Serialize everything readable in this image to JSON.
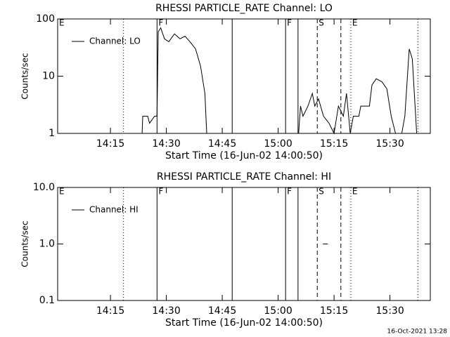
{
  "chart_data": [
    {
      "type": "line",
      "title": "RHESSI PARTICLE_RATE Channel: LO",
      "xlabel": "Start Time (16-Jun-02 14:00:50)",
      "ylabel": "Counts/sec",
      "log_y": true,
      "ylim": [
        1,
        100
      ],
      "yticks": [
        1,
        10,
        100
      ],
      "xlim": [
        "14:00:50",
        "15:40:50"
      ],
      "xticks": [
        "14:15",
        "14:30",
        "14:45",
        "15:00",
        "15:15",
        "15:30"
      ],
      "legend": "upper left",
      "series": [
        {
          "name": "Channel: LO",
          "color": "#000000",
          "x": [
            "14:23:30",
            "14:23:40",
            "14:25:00",
            "14:25:30",
            "14:26:50",
            "14:27:30",
            "14:27:50",
            "14:28:30",
            "14:29:30",
            "14:30:40",
            "14:32:10",
            "14:33:40",
            "14:35:00",
            "14:36:20",
            "14:37:50",
            "14:39:10",
            "14:40:20",
            "14:40:50",
            null,
            "15:05:30",
            "15:06:00",
            "15:06:40",
            "15:08:00",
            "15:09:10",
            "15:09:50",
            "15:10:50",
            "15:12:10",
            "15:13:40",
            "15:15:00",
            "15:16:10",
            "15:17:30",
            "15:18:20",
            "15:19:20",
            "15:20:10",
            "15:21:40",
            "15:22:10",
            "15:24:30",
            "15:25:10",
            "15:26:20",
            "15:27:50",
            "15:29:10",
            "15:30:20",
            "15:31:30",
            "15:33:10",
            "15:34:00",
            "15:35:10",
            "15:36:00",
            "15:37:10"
          ],
          "values": [
            1,
            2,
            2,
            1.5,
            2,
            2,
            60,
            70,
            45,
            40,
            55,
            45,
            50,
            40,
            30,
            15,
            5,
            1,
            null,
            1,
            3,
            2,
            3,
            5,
            3,
            4,
            2,
            1.5,
            1,
            3,
            2,
            5,
            1,
            2,
            2,
            3,
            3,
            7,
            9,
            8,
            6,
            2,
            1,
            1,
            2,
            30,
            20,
            1
          ]
        }
      ],
      "markers": [
        {
          "x": "14:18:30",
          "style": "dotted"
        },
        {
          "x": "14:27:30",
          "style": "solid"
        },
        {
          "x": "14:47:40",
          "style": "solid"
        },
        {
          "x": "15:02:00",
          "style": "solid"
        },
        {
          "x": "15:05:20",
          "style": "solid"
        },
        {
          "x": "15:10:30",
          "style": "dashed"
        },
        {
          "x": "15:16:50",
          "style": "dashed"
        },
        {
          "x": "15:19:30",
          "style": "dotted"
        },
        {
          "x": "15:37:30",
          "style": "dotted"
        }
      ],
      "annotations": [
        {
          "text": "E",
          "x": "14:00:50"
        },
        {
          "text": "F",
          "x": "14:27:30"
        },
        {
          "text": "F",
          "x": "15:02:00"
        },
        {
          "text": "S",
          "x": "15:10:30"
        },
        {
          "text": "E",
          "x": "15:19:30"
        }
      ]
    },
    {
      "type": "line",
      "title": "RHESSI PARTICLE_RATE Channel: HI",
      "xlabel": "Start Time (16-Jun-02 14:00:50)",
      "ylabel": "Counts/sec",
      "log_y": true,
      "ylim": [
        0.1,
        10
      ],
      "yticks": [
        {
          "value": 0.1,
          "label": "0.1"
        },
        {
          "value": 1,
          "label": "1.0"
        },
        {
          "value": 10,
          "label": "10.0"
        }
      ],
      "xlim": [
        "14:00:50",
        "15:40:50"
      ],
      "xticks": [
        "14:15",
        "14:30",
        "14:45",
        "15:00",
        "15:15",
        "15:30"
      ],
      "legend": "upper left",
      "series": [
        {
          "name": "Channel: HI",
          "color": "#000000",
          "x": [
            "15:12:00",
            "15:13:20"
          ],
          "values": [
            1,
            1
          ]
        }
      ],
      "markers": [
        {
          "x": "14:18:30",
          "style": "dotted"
        },
        {
          "x": "14:27:30",
          "style": "solid"
        },
        {
          "x": "14:47:40",
          "style": "solid"
        },
        {
          "x": "15:02:00",
          "style": "solid"
        },
        {
          "x": "15:05:20",
          "style": "solid"
        },
        {
          "x": "15:10:30",
          "style": "dashed"
        },
        {
          "x": "15:16:50",
          "style": "dashed"
        },
        {
          "x": "15:19:30",
          "style": "dotted"
        },
        {
          "x": "15:37:30",
          "style": "dotted"
        }
      ],
      "annotations": [
        {
          "text": "E",
          "x": "14:00:50"
        },
        {
          "text": "F",
          "x": "14:27:30"
        },
        {
          "text": "F",
          "x": "15:02:00"
        },
        {
          "text": "S",
          "x": "15:10:30"
        },
        {
          "text": "E",
          "x": "15:19:30"
        }
      ]
    }
  ],
  "footer": "16-Oct-2021 13:28"
}
